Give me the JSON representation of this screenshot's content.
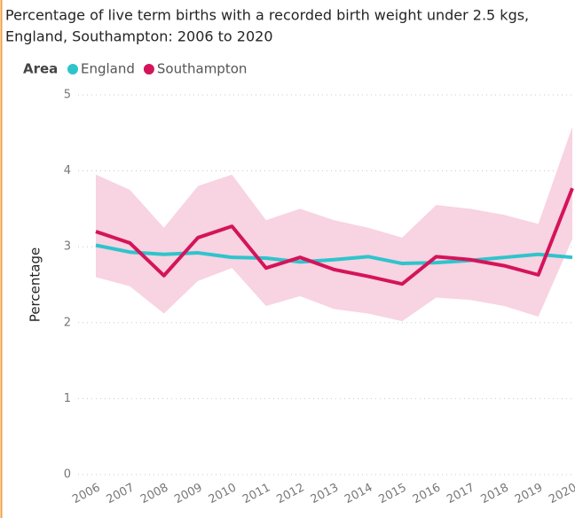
{
  "chart_data": {
    "type": "line",
    "title": "Percentage of live term births with a recorded birth weight under 2.5 kgs,",
    "subtitle": "England, Southampton: 2006 to 2020",
    "legend_title": "Area",
    "y_label": "Percentage",
    "categories": [
      "2006",
      "2007",
      "2008",
      "2009",
      "2010",
      "2011",
      "2012",
      "2013",
      "2014",
      "2015",
      "2016",
      "2017",
      "2018",
      "2019",
      "2020"
    ],
    "series": [
      {
        "name": "England",
        "color": "#2fc4cc",
        "values": [
          3.02,
          2.93,
          2.9,
          2.92,
          2.86,
          2.85,
          2.8,
          2.83,
          2.87,
          2.78,
          2.79,
          2.82,
          2.86,
          2.9,
          2.86
        ]
      },
      {
        "name": "Southampton",
        "color": "#d4145a",
        "values": [
          3.2,
          3.05,
          2.62,
          3.12,
          3.27,
          2.72,
          2.86,
          2.7,
          2.61,
          2.51,
          2.87,
          2.83,
          2.75,
          2.63,
          3.77
        ],
        "band": {
          "color": "#f8d3e1",
          "upper": [
            3.95,
            3.75,
            3.25,
            3.8,
            3.95,
            3.35,
            3.5,
            3.35,
            3.25,
            3.12,
            3.55,
            3.5,
            3.42,
            3.3,
            4.58
          ],
          "lower": [
            2.6,
            2.48,
            2.12,
            2.55,
            2.72,
            2.22,
            2.35,
            2.18,
            2.12,
            2.02,
            2.33,
            2.3,
            2.22,
            2.08,
            3.1
          ]
        }
      }
    ],
    "ylim": [
      0,
      5
    ],
    "yticks": [
      0,
      1,
      2,
      3,
      4,
      5
    ],
    "grid": true
  }
}
